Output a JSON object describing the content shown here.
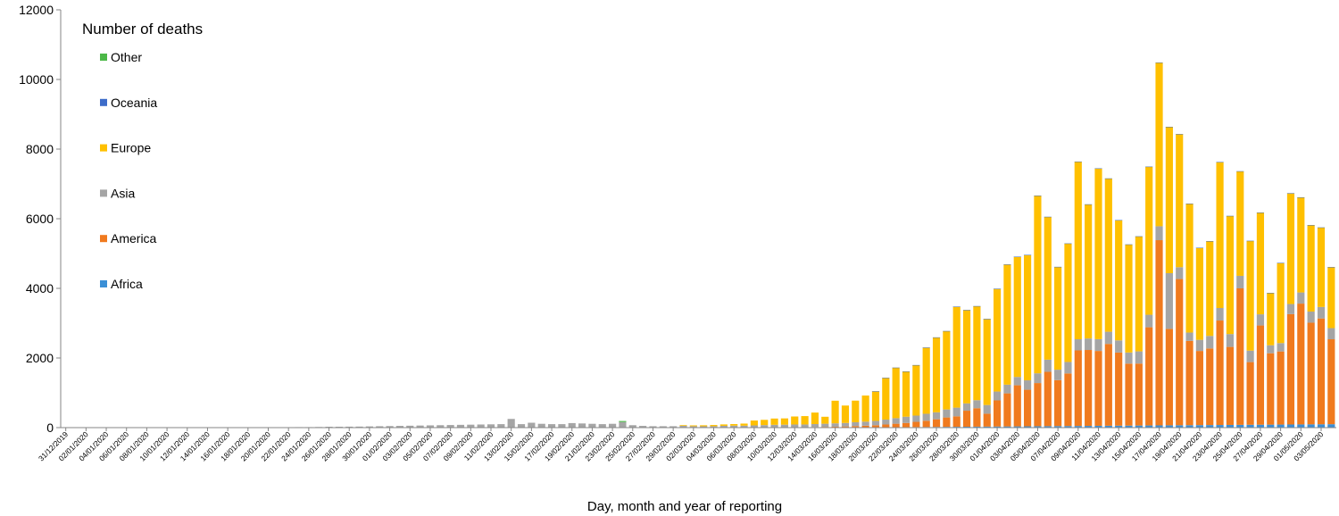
{
  "chart_data": {
    "type": "bar",
    "stacked": true,
    "title": "",
    "xlabel": "Day, month and year of reporting",
    "ylabel": "",
    "ylim": [
      0,
      12000
    ],
    "yticks": [
      0,
      2000,
      4000,
      6000,
      8000,
      10000,
      12000
    ],
    "grid": false,
    "legend": {
      "title": "Number of deaths",
      "placement": "top-left",
      "order": [
        "Other",
        "Oceania",
        "Europe",
        "Asia",
        "America",
        "Africa"
      ]
    },
    "colors": {
      "Africa": "#3a8fd6",
      "America": "#f07a1e",
      "Asia": "#a5a5a5",
      "Europe": "#ffc000",
      "Oceania": "#3d6cc9",
      "Other": "#4cb848"
    },
    "categories": [
      "31/12/2019",
      "01/01/2020",
      "02/01/2020",
      "03/01/2020",
      "04/01/2020",
      "05/01/2020",
      "06/01/2020",
      "07/01/2020",
      "08/01/2020",
      "09/01/2020",
      "10/01/2020",
      "11/01/2020",
      "12/01/2020",
      "13/01/2020",
      "14/01/2020",
      "15/01/2020",
      "16/01/2020",
      "17/01/2020",
      "18/01/2020",
      "19/01/2020",
      "20/01/2020",
      "21/01/2020",
      "22/01/2020",
      "23/01/2020",
      "24/01/2020",
      "25/01/2020",
      "26/01/2020",
      "27/01/2020",
      "28/01/2020",
      "29/01/2020",
      "30/01/2020",
      "31/01/2020",
      "01/02/2020",
      "02/02/2020",
      "03/02/2020",
      "04/02/2020",
      "05/02/2020",
      "06/02/2020",
      "07/02/2020",
      "08/02/2020",
      "09/02/2020",
      "10/02/2020",
      "11/02/2020",
      "12/02/2020",
      "13/02/2020",
      "14/02/2020",
      "15/02/2020",
      "16/02/2020",
      "17/02/2020",
      "18/02/2020",
      "19/02/2020",
      "20/02/2020",
      "21/02/2020",
      "22/02/2020",
      "23/02/2020",
      "24/02/2020",
      "25/02/2020",
      "26/02/2020",
      "27/02/2020",
      "28/02/2020",
      "29/02/2020",
      "01/03/2020",
      "02/03/2020",
      "03/03/2020",
      "04/03/2020",
      "05/03/2020",
      "06/03/2020",
      "07/03/2020",
      "08/03/2020",
      "09/03/2020",
      "10/03/2020",
      "11/03/2020",
      "12/03/2020",
      "13/03/2020",
      "14/03/2020",
      "15/03/2020",
      "16/03/2020",
      "17/03/2020",
      "18/03/2020",
      "19/03/2020",
      "20/03/2020",
      "21/03/2020",
      "22/03/2020",
      "23/03/2020",
      "24/03/2020",
      "25/03/2020",
      "26/03/2020",
      "27/03/2020",
      "28/03/2020",
      "29/03/2020",
      "30/03/2020",
      "31/03/2020",
      "01/04/2020",
      "02/04/2020",
      "03/04/2020",
      "04/04/2020",
      "05/04/2020",
      "06/04/2020",
      "07/04/2020",
      "08/04/2020",
      "09/04/2020",
      "10/04/2020",
      "11/04/2020",
      "12/04/2020",
      "13/04/2020",
      "14/04/2020",
      "15/04/2020",
      "16/04/2020",
      "17/04/2020",
      "18/04/2020",
      "19/04/2020",
      "20/04/2020",
      "21/04/2020",
      "22/04/2020",
      "23/04/2020",
      "24/04/2020",
      "25/04/2020",
      "26/04/2020",
      "27/04/2020",
      "28/04/2020",
      "29/04/2020",
      "30/04/2020",
      "01/05/2020",
      "02/05/2020",
      "03/05/2020",
      "04/05/2020"
    ],
    "tick_labels": [
      "31/12/2019",
      "02/01/2020",
      "04/01/2020",
      "06/01/2020",
      "08/01/2020",
      "10/01/2020",
      "12/01/2020",
      "14/01/2020",
      "16/01/2020",
      "18/01/2020",
      "20/01/2020",
      "22/01/2020",
      "24/01/2020",
      "26/01/2020",
      "28/01/2020",
      "30/01/2020",
      "01/02/2020",
      "03/02/2020",
      "05/02/2020",
      "07/02/2020",
      "09/02/2020",
      "11/02/2020",
      "13/02/2020",
      "15/02/2020",
      "17/02/2020",
      "19/02/2020",
      "21/02/2020",
      "23/02/2020",
      "25/02/2020",
      "27/02/2020",
      "29/02/2020",
      "02/03/2020",
      "04/03/2020",
      "06/03/2020",
      "08/03/2020",
      "10/03/2020",
      "12/03/2020",
      "14/03/2020",
      "16/03/2020",
      "18/03/2020",
      "20/03/2020",
      "22/03/2020",
      "24/03/2020",
      "26/03/2020",
      "28/03/2020",
      "30/03/2020",
      "01/04/2020",
      "03/04/2020",
      "05/04/2020",
      "07/04/2020",
      "09/04/2020",
      "11/04/2020",
      "13/04/2020",
      "15/04/2020",
      "17/04/2020",
      "19/04/2020",
      "21/04/2020",
      "23/04/2020",
      "25/04/2020",
      "27/04/2020",
      "29/04/2020",
      "01/05/2020",
      "03/05/2020"
    ],
    "series": [
      {
        "name": "Africa",
        "values": [
          0,
          0,
          0,
          0,
          0,
          0,
          0,
          0,
          0,
          0,
          0,
          0,
          0,
          0,
          0,
          0,
          0,
          0,
          0,
          0,
          0,
          0,
          0,
          0,
          0,
          0,
          0,
          0,
          0,
          0,
          0,
          0,
          0,
          0,
          0,
          0,
          0,
          0,
          0,
          0,
          0,
          0,
          0,
          0,
          0,
          0,
          0,
          0,
          0,
          0,
          0,
          0,
          0,
          0,
          0,
          0,
          0,
          0,
          0,
          0,
          0,
          0,
          0,
          0,
          0,
          0,
          0,
          0,
          0,
          0,
          0,
          0,
          0,
          1,
          2,
          2,
          3,
          4,
          5,
          6,
          8,
          10,
          12,
          14,
          16,
          18,
          20,
          22,
          24,
          26,
          28,
          30,
          32,
          34,
          36,
          38,
          40,
          42,
          44,
          46,
          48,
          50,
          52,
          54,
          56,
          58,
          60,
          62,
          64,
          66,
          68,
          70,
          72,
          74,
          76,
          78,
          80,
          82,
          84,
          86,
          88,
          90,
          92,
          94,
          96,
          98
        ]
      },
      {
        "name": "America",
        "values": [
          0,
          0,
          0,
          0,
          0,
          0,
          0,
          0,
          0,
          0,
          0,
          0,
          0,
          0,
          0,
          0,
          0,
          0,
          0,
          0,
          0,
          0,
          0,
          0,
          0,
          0,
          0,
          0,
          0,
          0,
          0,
          0,
          0,
          0,
          0,
          0,
          0,
          0,
          0,
          0,
          0,
          0,
          0,
          0,
          0,
          0,
          0,
          0,
          0,
          0,
          0,
          0,
          0,
          0,
          0,
          0,
          0,
          0,
          0,
          0,
          0,
          1,
          0,
          3,
          1,
          2,
          2,
          1,
          4,
          3,
          6,
          5,
          10,
          10,
          15,
          20,
          25,
          30,
          40,
          50,
          60,
          80,
          100,
          120,
          150,
          180,
          220,
          270,
          300,
          460,
          530,
          370,
          750,
          950,
          1180,
          1050,
          1240,
          1560,
          1320,
          1510,
          2170,
          2180,
          2150,
          2350,
          2100,
          1780,
          1780,
          2820,
          5320,
          2770,
          4200,
          2420,
          2130,
          2200,
          3000,
          2240,
          3920,
          1800,
          2850,
          2050,
          2100,
          3170,
          3470,
          2920,
          3040,
          2440
        ]
      },
      {
        "name": "Asia",
        "values": [
          0,
          0,
          0,
          0,
          0,
          0,
          0,
          0,
          0,
          0,
          0,
          0,
          1,
          0,
          1,
          2,
          3,
          4,
          5,
          6,
          8,
          10,
          12,
          15,
          15,
          18,
          25,
          25,
          28,
          30,
          35,
          40,
          45,
          50,
          55,
          60,
          65,
          70,
          75,
          80,
          85,
          90,
          95,
          100,
          250,
          100,
          140,
          110,
          100,
          100,
          130,
          120,
          110,
          100,
          110,
          160,
          70,
          50,
          40,
          40,
          40,
          50,
          40,
          35,
          40,
          50,
          55,
          55,
          60,
          70,
          75,
          80,
          80,
          80,
          85,
          90,
          95,
          100,
          110,
          115,
          125,
          140,
          160,
          180,
          180,
          200,
          200,
          230,
          250,
          210,
          230,
          250,
          255,
          250,
          240,
          270,
          280,
          350,
          300,
          330,
          320,
          330,
          340,
          350,
          350,
          320,
          350,
          360,
          400,
          1600,
          340,
          240,
          320,
          360,
          360,
          370,
          360,
          330,
          320,
          230,
          240,
          290,
          320,
          320,
          330,
          320
        ]
      },
      {
        "name": "Europe",
        "values": [
          0,
          0,
          0,
          0,
          0,
          0,
          0,
          0,
          0,
          0,
          0,
          0,
          0,
          0,
          0,
          0,
          0,
          0,
          0,
          0,
          0,
          0,
          0,
          0,
          0,
          0,
          0,
          0,
          0,
          0,
          0,
          0,
          0,
          0,
          0,
          0,
          0,
          0,
          0,
          0,
          0,
          0,
          0,
          0,
          0,
          0,
          0,
          0,
          0,
          0,
          0,
          0,
          0,
          0,
          0,
          0,
          0,
          0,
          0,
          0,
          0,
          20,
          25,
          30,
          35,
          40,
          45,
          60,
          140,
          150,
          180,
          180,
          230,
          240,
          330,
          200,
          650,
          500,
          620,
          750,
          850,
          1200,
          1450,
          1300,
          1450,
          1900,
          2150,
          2250,
          2900,
          2680,
          2700,
          2470,
          2950,
          3450,
          3450,
          3600,
          5100,
          4100,
          2950,
          3400,
          5100,
          3850,
          4900,
          4400,
          3450,
          3100,
          3300,
          4250,
          4700,
          4200,
          3820,
          3700,
          2640,
          2720,
          4190,
          3390,
          3000,
          3150,
          2920,
          1500,
          2300,
          3180,
          2730,
          2480,
          2280,
          1750
        ]
      },
      {
        "name": "Oceania",
        "values": [
          0,
          0,
          0,
          0,
          0,
          0,
          0,
          0,
          0,
          0,
          0,
          0,
          0,
          0,
          0,
          0,
          0,
          0,
          0,
          0,
          0,
          0,
          0,
          0,
          0,
          0,
          0,
          0,
          0,
          0,
          0,
          0,
          0,
          0,
          0,
          0,
          0,
          0,
          0,
          0,
          0,
          0,
          0,
          0,
          0,
          0,
          0,
          0,
          0,
          0,
          0,
          0,
          0,
          0,
          0,
          0,
          0,
          0,
          0,
          0,
          0,
          0,
          0,
          0,
          0,
          0,
          0,
          0,
          0,
          0,
          0,
          0,
          0,
          0,
          0,
          0,
          0,
          0,
          0,
          0,
          1,
          1,
          2,
          2,
          2,
          3,
          3,
          3,
          3,
          4,
          4,
          4,
          4,
          5,
          5,
          5,
          5,
          5,
          5,
          5,
          5,
          5,
          5,
          5,
          5,
          5,
          5,
          5,
          5,
          5,
          5,
          5,
          5,
          5,
          5,
          5,
          5,
          5,
          5,
          5,
          5,
          5,
          5,
          5,
          5,
          5
        ]
      },
      {
        "name": "Other",
        "values": [
          0,
          0,
          0,
          0,
          0,
          0,
          0,
          0,
          0,
          0,
          0,
          0,
          0,
          0,
          0,
          0,
          0,
          0,
          0,
          0,
          0,
          0,
          0,
          0,
          0,
          0,
          0,
          0,
          0,
          0,
          0,
          0,
          0,
          0,
          0,
          0,
          0,
          0,
          0,
          0,
          0,
          0,
          0,
          0,
          0,
          0,
          0,
          0,
          0,
          0,
          0,
          0,
          0,
          0,
          0,
          30,
          0,
          0,
          0,
          0,
          0,
          0,
          0,
          0,
          0,
          0,
          0,
          0,
          0,
          0,
          0,
          0,
          0,
          0,
          0,
          0,
          0,
          0,
          0,
          0,
          0,
          0,
          0,
          0,
          0,
          0,
          0,
          0,
          0,
          0,
          0,
          0,
          0,
          0,
          0,
          0,
          0,
          0,
          0,
          0,
          0,
          0,
          0,
          0,
          0,
          0,
          0,
          0,
          0,
          0,
          0,
          0,
          0,
          0,
          0,
          0,
          0,
          0,
          0,
          0,
          0,
          0,
          0,
          0,
          0,
          0
        ]
      }
    ]
  }
}
